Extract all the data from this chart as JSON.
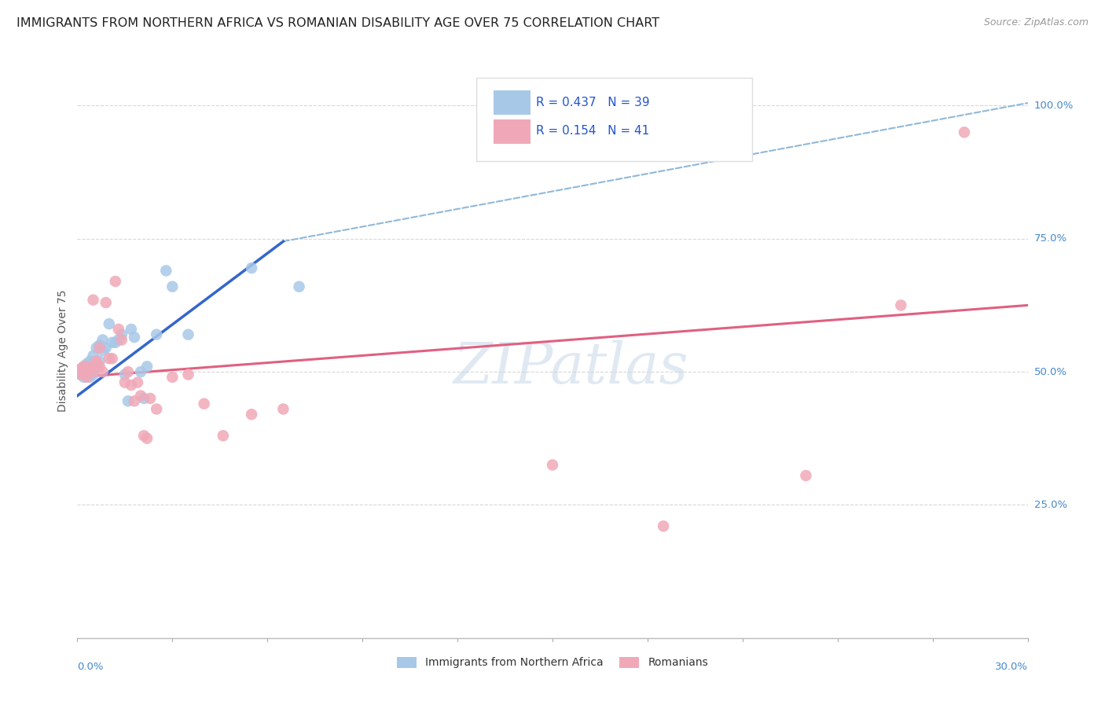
{
  "title": "IMMIGRANTS FROM NORTHERN AFRICA VS ROMANIAN DISABILITY AGE OVER 75 CORRELATION CHART",
  "source": "Source: ZipAtlas.com",
  "ylabel": "Disability Age Over 75",
  "xlim": [
    0.0,
    0.3
  ],
  "ylim": [
    0.0,
    1.08
  ],
  "background_color": "#ffffff",
  "grid_color": "#d8d8d8",
  "blue_color": "#a8c8e8",
  "pink_color": "#f0a8b8",
  "blue_line_color": "#3366cc",
  "pink_line_color": "#e06080",
  "dashed_line_color": "#90b8d8",
  "legend_r_blue": "0.437",
  "legend_n_blue": "39",
  "legend_r_pink": "0.154",
  "legend_n_pink": "41",
  "blue_scatter_x": [
    0.001,
    0.001,
    0.002,
    0.002,
    0.002,
    0.003,
    0.003,
    0.003,
    0.004,
    0.004,
    0.004,
    0.005,
    0.005,
    0.005,
    0.006,
    0.006,
    0.007,
    0.007,
    0.008,
    0.008,
    0.009,
    0.01,
    0.011,
    0.012,
    0.013,
    0.014,
    0.015,
    0.016,
    0.017,
    0.018,
    0.02,
    0.021,
    0.022,
    0.025,
    0.028,
    0.03,
    0.035,
    0.055,
    0.07
  ],
  "blue_scatter_y": [
    0.505,
    0.495,
    0.51,
    0.5,
    0.49,
    0.515,
    0.505,
    0.495,
    0.52,
    0.51,
    0.49,
    0.53,
    0.515,
    0.495,
    0.545,
    0.51,
    0.55,
    0.52,
    0.56,
    0.54,
    0.545,
    0.59,
    0.555,
    0.555,
    0.56,
    0.57,
    0.495,
    0.445,
    0.58,
    0.565,
    0.5,
    0.45,
    0.51,
    0.57,
    0.69,
    0.66,
    0.57,
    0.695,
    0.66
  ],
  "pink_scatter_x": [
    0.001,
    0.001,
    0.002,
    0.002,
    0.003,
    0.003,
    0.004,
    0.005,
    0.005,
    0.006,
    0.006,
    0.007,
    0.007,
    0.008,
    0.009,
    0.01,
    0.011,
    0.012,
    0.013,
    0.014,
    0.015,
    0.016,
    0.017,
    0.018,
    0.019,
    0.02,
    0.021,
    0.022,
    0.023,
    0.025,
    0.03,
    0.035,
    0.04,
    0.046,
    0.055,
    0.065,
    0.15,
    0.185,
    0.23,
    0.26,
    0.28
  ],
  "pink_scatter_y": [
    0.505,
    0.495,
    0.51,
    0.5,
    0.51,
    0.49,
    0.505,
    0.5,
    0.635,
    0.52,
    0.515,
    0.51,
    0.545,
    0.5,
    0.63,
    0.525,
    0.525,
    0.67,
    0.58,
    0.56,
    0.48,
    0.5,
    0.475,
    0.445,
    0.48,
    0.455,
    0.38,
    0.375,
    0.45,
    0.43,
    0.49,
    0.495,
    0.44,
    0.38,
    0.42,
    0.43,
    0.325,
    0.21,
    0.305,
    0.625,
    0.95
  ],
  "blue_line_x": [
    0.0,
    0.065
  ],
  "blue_line_y": [
    0.455,
    0.745
  ],
  "pink_line_x": [
    0.0,
    0.3
  ],
  "pink_line_y": [
    0.49,
    0.625
  ],
  "dashed_line_x": [
    0.065,
    0.3
  ],
  "dashed_line_y": [
    0.745,
    1.005
  ],
  "watermark": "ZIPatlas",
  "watermark_color": "#c8d8e8"
}
